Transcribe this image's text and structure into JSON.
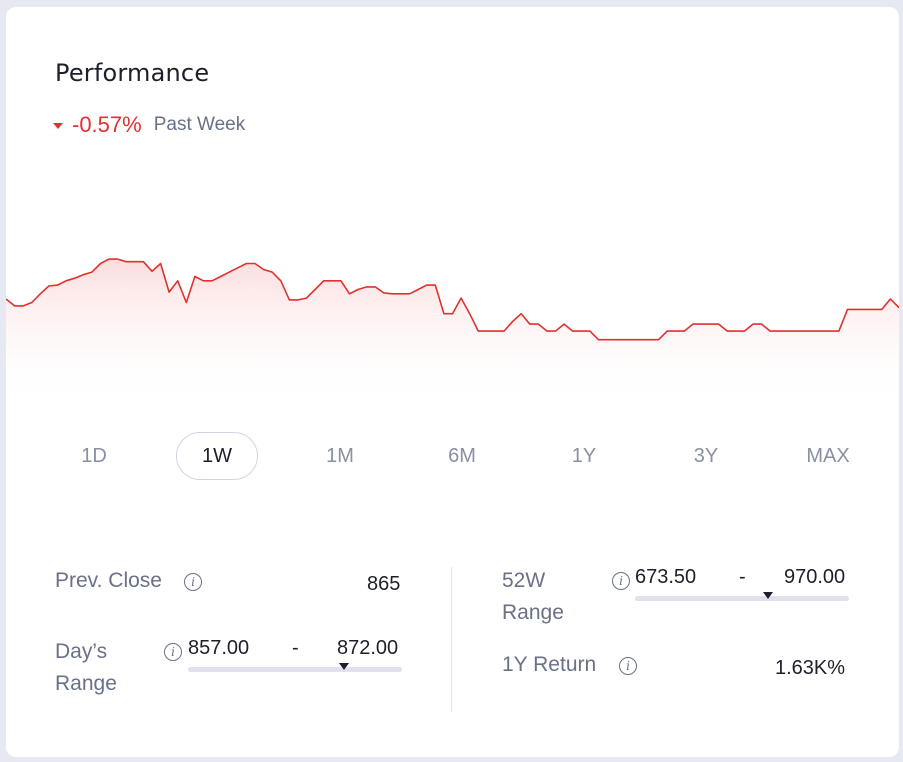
{
  "header": {
    "title": "Performance"
  },
  "change": {
    "value": "-0.57%",
    "period": "Past Week",
    "direction": "down",
    "color": "#e0312f"
  },
  "tabs": [
    {
      "label": "1D",
      "active": false
    },
    {
      "label": "1W",
      "active": true
    },
    {
      "label": "1M",
      "active": false
    },
    {
      "label": "6M",
      "active": false
    },
    {
      "label": "1Y",
      "active": false
    },
    {
      "label": "3Y",
      "active": false
    },
    {
      "label": "MAX",
      "active": false
    }
  ],
  "stats": {
    "prev_close": {
      "label": "Prev. Close",
      "value": "865"
    },
    "days_range": {
      "label_line1": "Day’s",
      "label_line2": "Range",
      "low": "857.00",
      "sep": "-",
      "high": "872.00",
      "position": 0.73
    },
    "w52_range": {
      "label_line1": "52W",
      "label_line2": "Range",
      "low": "673.50",
      "sep": "-",
      "high": "970.00",
      "position": 0.62
    },
    "one_year_return": {
      "label": "1Y Return",
      "value": "1.63K%"
    }
  },
  "chart_data": {
    "type": "area",
    "title": "",
    "xlabel": "",
    "ylabel": "",
    "color": "#e0312f",
    "ylim": [
      857,
      872
    ],
    "values": [
      866.0,
      865.2,
      865.2,
      865.6,
      866.6,
      867.5,
      867.6,
      868.1,
      868.4,
      868.8,
      869.1,
      870.1,
      870.6,
      870.6,
      870.3,
      870.3,
      870.3,
      869.2,
      870.1,
      866.8,
      868.1,
      865.6,
      868.6,
      868.1,
      868.1,
      868.6,
      869.1,
      869.6,
      870.1,
      870.1,
      869.4,
      869.1,
      868.1,
      865.9,
      865.9,
      866.1,
      867.1,
      868.1,
      868.1,
      868.1,
      866.6,
      867.1,
      867.4,
      867.4,
      866.7,
      866.6,
      866.6,
      866.6,
      867.1,
      867.6,
      867.6,
      864.3,
      864.3,
      866.1,
      864.3,
      862.3,
      862.3,
      862.3,
      862.3,
      863.4,
      864.3,
      863.1,
      863.1,
      862.3,
      862.3,
      863.1,
      862.3,
      862.3,
      862.3,
      861.3,
      861.3,
      861.3,
      861.3,
      861.3,
      861.3,
      861.3,
      861.3,
      862.3,
      862.3,
      862.3,
      863.1,
      863.1,
      863.1,
      863.1,
      862.3,
      862.3,
      862.3,
      863.1,
      863.1,
      862.3,
      862.3,
      862.3,
      862.3,
      862.3,
      862.3,
      862.3,
      862.3,
      862.3,
      864.8,
      864.8,
      864.8,
      864.8,
      864.8,
      866.0,
      865.0
    ]
  }
}
